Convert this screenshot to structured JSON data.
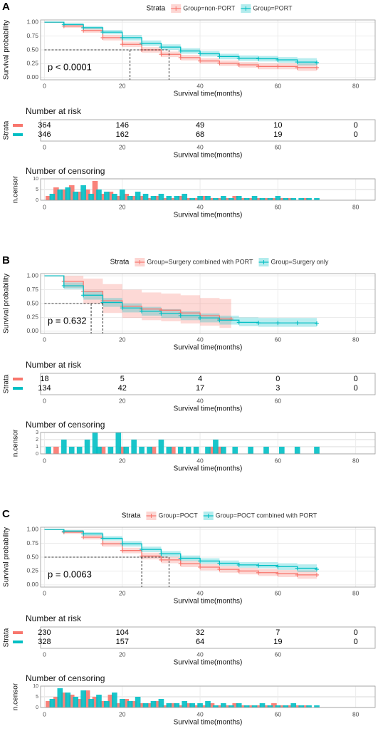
{
  "chart_data": [
    {
      "type": "km",
      "panel": "A",
      "legend_title": "Strata",
      "annotation": "p < 0.0001",
      "xlabel": "Survival time(months)",
      "ylabel": "Survival probability",
      "xlim": [
        -1,
        85
      ],
      "xticks": [
        0,
        20,
        40,
        60,
        80
      ],
      "ylim": [
        -0.04,
        1.04
      ],
      "yticks": [
        {
          "value": 0,
          "label": "0.00"
        },
        {
          "value": 0.25,
          "label": "0.25"
        },
        {
          "value": 0.5,
          "label": "0.50"
        },
        {
          "value": 0.75,
          "label": "0.75"
        },
        {
          "value": 1,
          "label": "1.00"
        }
      ],
      "series": [
        {
          "name": "Group=non-PORT",
          "color": "#F8766D",
          "median": 22,
          "x": [
            0,
            5,
            10,
            15,
            20,
            25,
            30,
            35,
            40,
            45,
            50,
            55,
            60,
            65,
            70
          ],
          "values": [
            1,
            0.93,
            0.85,
            0.72,
            0.6,
            0.5,
            0.42,
            0.36,
            0.3,
            0.26,
            0.23,
            0.2,
            0.2,
            0.18,
            0.18
          ],
          "lower": [
            1,
            0.9,
            0.81,
            0.67,
            0.55,
            0.45,
            0.37,
            0.31,
            0.25,
            0.21,
            0.18,
            0.15,
            0.15,
            0.12,
            0.12
          ],
          "upper": [
            1,
            0.96,
            0.89,
            0.77,
            0.65,
            0.55,
            0.47,
            0.41,
            0.35,
            0.31,
            0.28,
            0.26,
            0.26,
            0.25,
            0.25
          ]
        },
        {
          "name": "Group=PORT",
          "color": "#00BFC4",
          "median": 32,
          "x": [
            0,
            5,
            10,
            15,
            20,
            25,
            30,
            35,
            40,
            45,
            50,
            55,
            60,
            65,
            70
          ],
          "values": [
            1,
            0.96,
            0.9,
            0.82,
            0.72,
            0.62,
            0.55,
            0.48,
            0.43,
            0.38,
            0.35,
            0.34,
            0.32,
            0.28,
            0.27
          ],
          "lower": [
            1,
            0.94,
            0.87,
            0.78,
            0.67,
            0.57,
            0.5,
            0.43,
            0.38,
            0.33,
            0.3,
            0.29,
            0.27,
            0.22,
            0.2
          ],
          "upper": [
            1,
            0.98,
            0.93,
            0.86,
            0.77,
            0.67,
            0.6,
            0.53,
            0.48,
            0.43,
            0.4,
            0.39,
            0.37,
            0.35,
            0.34
          ]
        }
      ]
    },
    {
      "type": "risk",
      "title": "Number at risk",
      "ylabel": "Strata",
      "xlabel": "Survival time(months)",
      "xlim": [
        -1,
        85
      ],
      "xticks": [
        0,
        20,
        40,
        60
      ],
      "x": [
        0,
        20,
        40,
        60,
        80
      ],
      "series": [
        {
          "color": "#F8766D",
          "values": [
            364,
            146,
            49,
            10,
            0
          ]
        },
        {
          "color": "#00BFC4",
          "values": [
            346,
            162,
            68,
            19,
            0
          ]
        }
      ]
    },
    {
      "type": "censor",
      "title": "Number of censoring",
      "ylabel": "n.censor",
      "xlabel": "Survival time(months)",
      "xlim": [
        -1,
        85
      ],
      "xticks": [
        0,
        20,
        40,
        60,
        80
      ],
      "ylim": [
        0,
        10
      ],
      "yticks": [
        0,
        5,
        10
      ],
      "series": [
        {
          "color": "#F8766D",
          "x": [
            1,
            3,
            5,
            7,
            9,
            11,
            13,
            15,
            17,
            19,
            21,
            23,
            25,
            27,
            29,
            31,
            33,
            35,
            37,
            39,
            41,
            43,
            45,
            47,
            49,
            51,
            53,
            55,
            57,
            59,
            61,
            63,
            65,
            67
          ],
          "values": [
            2,
            6,
            5,
            7,
            4,
            5,
            9,
            3,
            4,
            2,
            3,
            2,
            2,
            1,
            2,
            1,
            1,
            2,
            1,
            1,
            2,
            1,
            1,
            1,
            2,
            1,
            1,
            1,
            1,
            1,
            1,
            1,
            0,
            1
          ]
        },
        {
          "color": "#00BFC4",
          "x": [
            2,
            4,
            6,
            8,
            10,
            12,
            14,
            16,
            18,
            20,
            22,
            24,
            26,
            28,
            30,
            32,
            34,
            36,
            38,
            40,
            42,
            44,
            46,
            48,
            50,
            52,
            54,
            56,
            58,
            60,
            62,
            64,
            66,
            68,
            70
          ],
          "values": [
            3,
            5,
            6,
            4,
            7,
            3,
            5,
            4,
            3,
            5,
            2,
            4,
            3,
            2,
            3,
            2,
            2,
            3,
            1,
            2,
            2,
            1,
            2,
            1,
            2,
            1,
            2,
            1,
            1,
            2,
            1,
            1,
            1,
            1,
            1
          ]
        }
      ]
    },
    {
      "type": "km",
      "panel": "B",
      "legend_title": "Strata",
      "annotation": "p = 0.632",
      "xlabel": "Survival time(months)",
      "ylabel": "Survival probability",
      "xlim": [
        -1,
        85
      ],
      "xticks": [
        0,
        20,
        40,
        60,
        80
      ],
      "ylim": [
        -0.04,
        1.04
      ],
      "yticks": [
        {
          "value": 0,
          "label": "0.00"
        },
        {
          "value": 0.25,
          "label": "0.25"
        },
        {
          "value": 0.5,
          "label": "0.50"
        },
        {
          "value": 0.75,
          "label": "0.75"
        },
        {
          "value": 1,
          "label": "1.00"
        }
      ],
      "series": [
        {
          "name": "Group=Surgery combined with PORT",
          "color": "#F8766D",
          "median": 15,
          "x": [
            0,
            5,
            10,
            15,
            20,
            25,
            30,
            35,
            40,
            45,
            48
          ],
          "values": [
            1,
            0.9,
            0.72,
            0.55,
            0.45,
            0.4,
            0.38,
            0.33,
            0.28,
            0.22,
            0.22
          ],
          "lower": [
            1,
            0.78,
            0.5,
            0.33,
            0.24,
            0.2,
            0.18,
            0.14,
            0.1,
            0.06,
            0.06
          ],
          "upper": [
            1,
            1,
            0.95,
            0.85,
            0.75,
            0.7,
            0.68,
            0.65,
            0.6,
            0.58,
            0.58
          ]
        },
        {
          "name": "Group=Surgery only",
          "color": "#00BFC4",
          "median": 12,
          "x": [
            0,
            5,
            10,
            15,
            20,
            25,
            30,
            35,
            40,
            45,
            50,
            55,
            60,
            65,
            70
          ],
          "values": [
            1,
            0.82,
            0.65,
            0.52,
            0.42,
            0.36,
            0.32,
            0.28,
            0.24,
            0.2,
            0.16,
            0.15,
            0.15,
            0.15,
            0.14
          ],
          "lower": [
            1,
            0.76,
            0.57,
            0.44,
            0.34,
            0.28,
            0.24,
            0.2,
            0.16,
            0.12,
            0.09,
            0.08,
            0.08,
            0.08,
            0.07
          ],
          "upper": [
            1,
            0.88,
            0.73,
            0.6,
            0.5,
            0.44,
            0.4,
            0.36,
            0.32,
            0.28,
            0.25,
            0.24,
            0.24,
            0.24,
            0.23
          ]
        }
      ]
    },
    {
      "type": "risk",
      "title": "Number at risk",
      "ylabel": "Strata",
      "xlabel": "Survival time(months)",
      "xlim": [
        -1,
        85
      ],
      "xticks": [
        0,
        20,
        40,
        60
      ],
      "x": [
        0,
        20,
        40,
        60,
        80
      ],
      "series": [
        {
          "color": "#F8766D",
          "values": [
            18,
            5,
            4,
            0,
            0
          ]
        },
        {
          "color": "#00BFC4",
          "values": [
            134,
            42,
            17,
            3,
            0
          ]
        }
      ]
    },
    {
      "type": "censor",
      "title": "Number of censoring",
      "ylabel": "n.censor",
      "xlabel": "Survival time(months)",
      "xlim": [
        -1,
        85
      ],
      "xticks": [
        0,
        20,
        40,
        60,
        80
      ],
      "ylim": [
        0,
        3
      ],
      "yticks": [
        0,
        1,
        2,
        3
      ],
      "series": [
        {
          "color": "#F8766D",
          "x": [
            3,
            15,
            20,
            28,
            33,
            43,
            45
          ],
          "values": [
            1,
            1,
            1,
            1,
            1,
            1,
            1
          ]
        },
        {
          "color": "#00BFC4",
          "x": [
            1,
            5,
            7,
            9,
            11,
            13,
            14,
            17,
            19,
            21,
            23,
            25,
            27,
            30,
            32,
            35,
            37,
            39,
            42,
            44,
            46,
            49,
            53,
            57,
            61,
            65,
            70
          ],
          "values": [
            1,
            2,
            1,
            1,
            2,
            3,
            1,
            1,
            3,
            1,
            2,
            1,
            1,
            2,
            1,
            1,
            1,
            1,
            1,
            2,
            1,
            1,
            1,
            1,
            1,
            1,
            1
          ]
        }
      ]
    },
    {
      "type": "km",
      "panel": "C",
      "legend_title": "Strata",
      "annotation": "p = 0.0063",
      "xlabel": "Survival time(months)",
      "ylabel": "Survival probability",
      "xlim": [
        -1,
        85
      ],
      "xticks": [
        0,
        20,
        40,
        60,
        80
      ],
      "ylim": [
        -0.04,
        1.04
      ],
      "yticks": [
        {
          "value": 0,
          "label": "0.00"
        },
        {
          "value": 0.25,
          "label": "0.25"
        },
        {
          "value": 0.5,
          "label": "0.50"
        },
        {
          "value": 0.75,
          "label": "0.75"
        },
        {
          "value": 1,
          "label": "1.00"
        }
      ],
      "series": [
        {
          "name": "Group=POCT",
          "color": "#F8766D",
          "median": 25,
          "x": [
            0,
            5,
            10,
            15,
            20,
            25,
            30,
            35,
            40,
            45,
            50,
            55,
            60,
            65,
            70
          ],
          "values": [
            1,
            0.95,
            0.86,
            0.74,
            0.62,
            0.52,
            0.45,
            0.38,
            0.32,
            0.28,
            0.25,
            0.22,
            0.2,
            0.18,
            0.18
          ],
          "lower": [
            1,
            0.92,
            0.82,
            0.69,
            0.57,
            0.46,
            0.39,
            0.32,
            0.26,
            0.22,
            0.19,
            0.16,
            0.14,
            0.11,
            0.11
          ],
          "upper": [
            1,
            0.98,
            0.9,
            0.79,
            0.67,
            0.58,
            0.51,
            0.44,
            0.38,
            0.34,
            0.31,
            0.29,
            0.27,
            0.26,
            0.26
          ]
        },
        {
          "name": "Group=POCT combined with PORT",
          "color": "#00BFC4",
          "median": 32,
          "x": [
            0,
            5,
            10,
            15,
            20,
            25,
            30,
            35,
            40,
            45,
            50,
            55,
            60,
            65,
            70
          ],
          "values": [
            1,
            0.97,
            0.92,
            0.84,
            0.74,
            0.64,
            0.56,
            0.48,
            0.43,
            0.39,
            0.36,
            0.35,
            0.33,
            0.3,
            0.28
          ],
          "lower": [
            1,
            0.95,
            0.89,
            0.8,
            0.69,
            0.59,
            0.51,
            0.43,
            0.38,
            0.34,
            0.31,
            0.3,
            0.27,
            0.23,
            0.21
          ],
          "upper": [
            1,
            0.99,
            0.95,
            0.88,
            0.79,
            0.69,
            0.61,
            0.53,
            0.48,
            0.44,
            0.41,
            0.41,
            0.39,
            0.37,
            0.36
          ]
        }
      ]
    },
    {
      "type": "risk",
      "title": "Number at risk",
      "ylabel": "Strata",
      "xlabel": "Survival time(months)",
      "xlim": [
        -1,
        85
      ],
      "xticks": [
        0,
        20,
        40,
        60
      ],
      "x": [
        0,
        20,
        40,
        60,
        80
      ],
      "series": [
        {
          "color": "#F8766D",
          "values": [
            230,
            104,
            32,
            7,
            0
          ]
        },
        {
          "color": "#00BFC4",
          "values": [
            328,
            157,
            64,
            19,
            0
          ]
        }
      ]
    },
    {
      "type": "censor",
      "title": "Number of censoring",
      "ylabel": "n.censor",
      "xlabel": "Survival time(months)",
      "xlim": [
        -1,
        85
      ],
      "xticks": [
        0,
        20,
        40,
        60,
        80
      ],
      "ylim": [
        0,
        10
      ],
      "yticks": [
        0,
        5,
        10
      ],
      "series": [
        {
          "color": "#F8766D",
          "x": [
            1,
            3,
            5,
            7,
            9,
            11,
            13,
            15,
            17,
            19,
            21,
            23,
            25,
            27,
            29,
            31,
            33,
            35,
            37,
            39,
            41,
            43,
            45,
            47,
            49,
            51,
            53,
            55,
            57,
            59,
            61,
            63,
            65,
            67
          ],
          "values": [
            3,
            5,
            7,
            6,
            4,
            8,
            5,
            3,
            6,
            2,
            4,
            3,
            2,
            2,
            3,
            1,
            2,
            1,
            2,
            1,
            1,
            2,
            1,
            1,
            2,
            1,
            1,
            1,
            1,
            2,
            1,
            1,
            1,
            1
          ]
        },
        {
          "color": "#00BFC4",
          "x": [
            2,
            4,
            6,
            8,
            10,
            12,
            14,
            16,
            18,
            20,
            22,
            24,
            26,
            28,
            30,
            32,
            34,
            36,
            38,
            40,
            42,
            44,
            46,
            48,
            50,
            52,
            54,
            56,
            58,
            60,
            62,
            64,
            66,
            68,
            70
          ],
          "values": [
            4,
            9,
            7,
            5,
            8,
            4,
            6,
            3,
            7,
            4,
            3,
            5,
            2,
            3,
            4,
            2,
            2,
            3,
            2,
            2,
            3,
            1,
            2,
            1,
            2,
            1,
            1,
            2,
            1,
            1,
            1,
            2,
            1,
            1,
            1
          ]
        }
      ]
    }
  ]
}
